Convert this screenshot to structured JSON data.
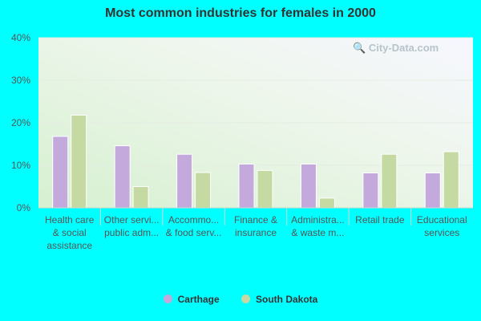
{
  "chart_data": {
    "type": "bar",
    "title": "Most common industries for females in 2000",
    "categories": [
      [
        "Health care",
        "& social",
        "assistance"
      ],
      [
        "Other servi...",
        "public adm..."
      ],
      [
        "Accommo...",
        "& food serv..."
      ],
      [
        "Finance &",
        "insurance"
      ],
      [
        "Administra...",
        "& waste m..."
      ],
      [
        "Retail trade"
      ],
      [
        "Educational",
        "services"
      ]
    ],
    "series": [
      {
        "name": "Carthage",
        "color": "#c3a9dc",
        "values": [
          16.8,
          14.6,
          12.6,
          10.3,
          10.3,
          8.2,
          8.2
        ]
      },
      {
        "name": "South Dakota",
        "color": "#c5d9a3",
        "values": [
          21.8,
          5.0,
          8.3,
          8.8,
          2.3,
          12.6,
          13.2
        ]
      }
    ],
    "y_ticks": [
      "0%",
      "10%",
      "20%",
      "30%",
      "40%"
    ],
    "ylim": [
      0,
      40
    ],
    "grid": true,
    "legend_position": "bottom"
  },
  "watermark": "City-Data.com"
}
